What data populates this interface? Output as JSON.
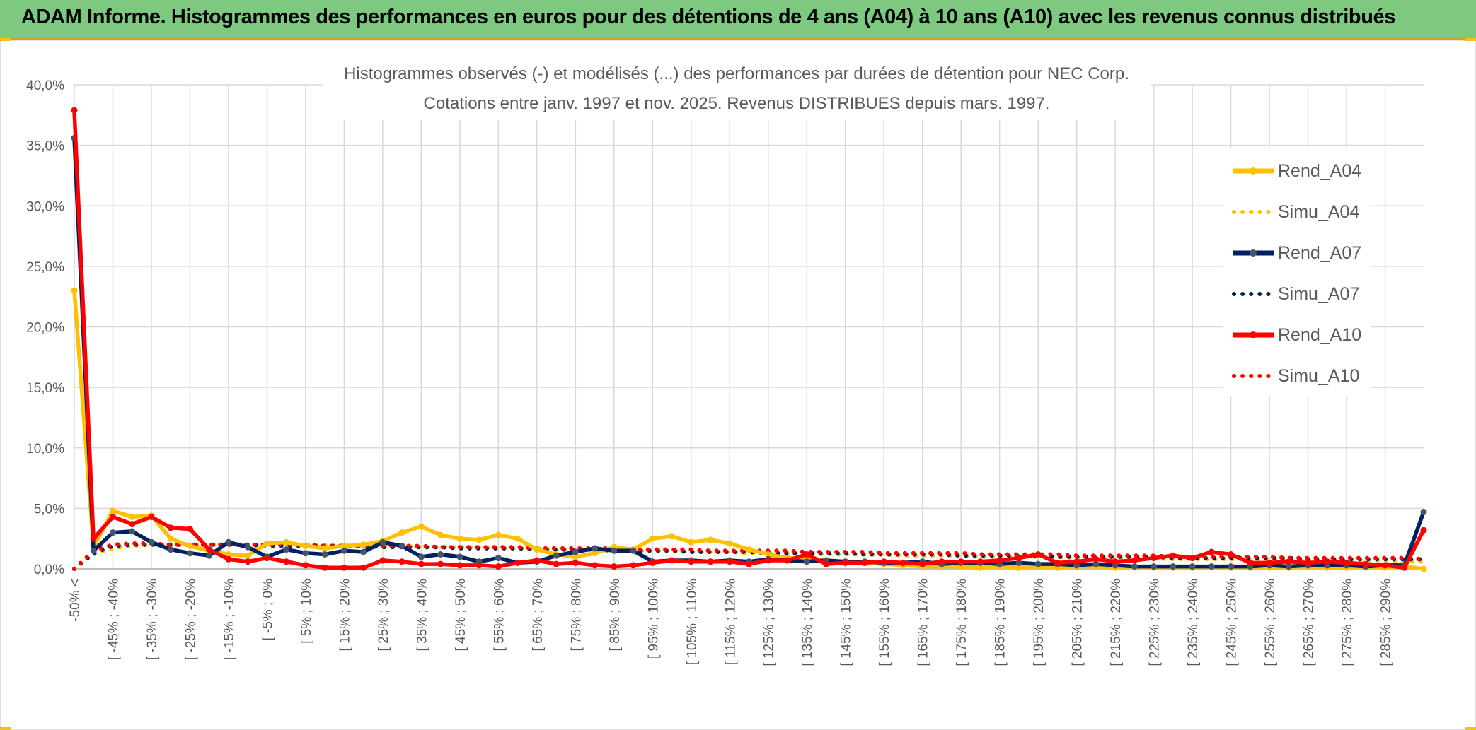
{
  "header": {
    "title": "ADAM Informe. Histogrammes des performances en euros pour des détentions de 4 ans (A04) à 10 ans (A10) avec les revenus connus distribués"
  },
  "colors": {
    "banner": "#7dc97f",
    "A04": "#ffc000",
    "A07": "#002060",
    "A10": "#ff0000",
    "grid": "#d9d9d9",
    "text": "#595959"
  },
  "chart_data": {
    "type": "line",
    "title": "Histogrammes observés (-) et modélisés (...) des performances par durées de détention pour NEC Corp.",
    "subtitle": "Cotations entre janv. 1997 et nov. 2025. Revenus DISTRIBUES depuis mars. 1997.",
    "ylim": [
      0,
      40
    ],
    "yticks": [
      "0,0%",
      "5,0%",
      "10,0%",
      "15,0%",
      "20,0%",
      "25,0%",
      "30,0%",
      "35,0%",
      "40,0%"
    ],
    "grid": true,
    "legend_position": "right",
    "x_tick_labels": [
      "-50% <",
      "[ -45% ; -40%",
      "[ -35% ; -30%",
      "[ -25% ; -20%",
      "[ -15% ; -10%",
      "[ -5% ; 0%",
      "[ 5% ; 10%",
      "[ 15% ; 20%",
      "[ 25% ; 30%",
      "[ 35% ; 40%",
      "[ 45% ; 50%",
      "[ 55% ; 60%",
      "[ 65% ; 70%",
      "[ 75% ; 80%",
      "[ 85% ; 90%",
      "[ 95% ; 100%",
      "[ 105% ; 110%",
      "[ 115% ; 120%",
      "[ 125% ; 130%",
      "[ 135% ; 140%",
      "[ 145% ; 150%",
      "[ 155% ; 160%",
      "[ 165% ; 170%",
      "[ 175% ; 180%",
      "[ 185% ; 190%",
      "[ 195% ; 200%",
      "[ 205% ; 210%",
      "[ 215% ; 220%",
      "[ 225% ; 230%",
      "[ 235% ; 240%",
      "[ 245% ; 250%",
      "[ 255% ; 260%",
      "[ 265% ; 270%",
      "[ 275% ; 280%",
      "[ 285% ; 290%"
    ],
    "n_points": 71,
    "series": [
      {
        "name": "Rend_A04",
        "style": "solid",
        "color": "#ffc000",
        "values": [
          23.0,
          1.8,
          4.8,
          4.3,
          4.4,
          2.5,
          1.9,
          1.5,
          1.2,
          1.1,
          2.1,
          2.2,
          1.9,
          1.7,
          1.9,
          2.0,
          2.3,
          3.0,
          3.5,
          2.8,
          2.5,
          2.4,
          2.8,
          2.5,
          1.6,
          1.2,
          1.0,
          1.3,
          1.8,
          1.6,
          2.5,
          2.7,
          2.2,
          2.4,
          2.1,
          1.6,
          1.2,
          0.9,
          0.8,
          0.7,
          0.6,
          0.5,
          0.4,
          0.3,
          0.2,
          0.2,
          0.2,
          0.1,
          0.2,
          0.1,
          0.2,
          0.1,
          0.2,
          0.2,
          0.1,
          0.2,
          0.1,
          0.1,
          0.1,
          0.2,
          0.1,
          0.1,
          0.1,
          0.1,
          0.2,
          0.1,
          0.1,
          0.2,
          0.1,
          0.2,
          0.0
        ]
      },
      {
        "name": "Simu_A04",
        "style": "dotted",
        "color": "#ffc000",
        "values": [
          0.0,
          1.2,
          1.7,
          1.9,
          2.0,
          2.0,
          2.0,
          2.0,
          2.0,
          2.0,
          2.0,
          2.0,
          2.0,
          2.0,
          1.9,
          1.9,
          1.9,
          1.9,
          1.8,
          1.8,
          1.8,
          1.8,
          1.7,
          1.7,
          1.7,
          1.6,
          1.6,
          1.6,
          1.5,
          1.5,
          1.5,
          1.5,
          1.4,
          1.4,
          1.4,
          1.3,
          1.3,
          1.3,
          1.3,
          1.2,
          1.2,
          1.2,
          1.2,
          1.1,
          1.1,
          1.1,
          1.1,
          1.0,
          1.0,
          1.0,
          1.0,
          1.0,
          0.9,
          0.9,
          0.9,
          0.9,
          0.9,
          0.8,
          0.8,
          0.8,
          0.8,
          0.8,
          0.8,
          0.7,
          0.7,
          0.7,
          0.7,
          0.7,
          0.7,
          0.6,
          0.6
        ]
      },
      {
        "name": "Rend_A07",
        "style": "solid",
        "color": "#002060",
        "values": [
          35.6,
          1.5,
          3.0,
          3.1,
          2.2,
          1.6,
          1.3,
          1.1,
          2.2,
          1.8,
          1.0,
          1.6,
          1.3,
          1.2,
          1.5,
          1.4,
          2.2,
          1.9,
          1.0,
          1.2,
          1.0,
          0.6,
          0.9,
          0.5,
          0.6,
          1.1,
          1.4,
          1.7,
          1.5,
          1.5,
          0.6,
          0.7,
          0.7,
          0.6,
          0.7,
          0.6,
          0.8,
          0.7,
          0.6,
          0.7,
          0.6,
          0.6,
          0.5,
          0.5,
          0.6,
          0.4,
          0.5,
          0.5,
          0.4,
          0.5,
          0.4,
          0.4,
          0.3,
          0.4,
          0.3,
          0.2,
          0.2,
          0.2,
          0.2,
          0.2,
          0.2,
          0.2,
          0.3,
          0.2,
          0.3,
          0.3,
          0.3,
          0.2,
          0.3,
          0.3,
          4.7
        ]
      },
      {
        "name": "Simu_A07",
        "style": "dotted",
        "color": "#002060",
        "values": [
          0.0,
          1.3,
          1.9,
          2.0,
          2.0,
          2.0,
          2.0,
          2.0,
          2.0,
          2.0,
          1.9,
          1.9,
          1.9,
          1.9,
          1.9,
          1.9,
          1.8,
          1.8,
          1.8,
          1.8,
          1.7,
          1.7,
          1.7,
          1.7,
          1.6,
          1.6,
          1.6,
          1.6,
          1.5,
          1.5,
          1.5,
          1.5,
          1.4,
          1.4,
          1.4,
          1.4,
          1.3,
          1.3,
          1.3,
          1.3,
          1.3,
          1.2,
          1.2,
          1.2,
          1.2,
          1.2,
          1.1,
          1.1,
          1.1,
          1.1,
          1.1,
          1.0,
          1.0,
          1.0,
          1.0,
          1.0,
          1.0,
          0.9,
          0.9,
          0.9,
          0.9,
          0.9,
          0.9,
          0.9,
          0.8,
          0.8,
          0.8,
          0.8,
          0.8,
          0.8,
          0.8
        ]
      },
      {
        "name": "Rend_A10",
        "style": "solid",
        "color": "#ff0000",
        "values": [
          37.9,
          2.5,
          4.3,
          3.7,
          4.3,
          3.4,
          3.3,
          1.6,
          0.8,
          0.6,
          0.9,
          0.6,
          0.3,
          0.1,
          0.1,
          0.1,
          0.7,
          0.6,
          0.4,
          0.4,
          0.3,
          0.3,
          0.2,
          0.5,
          0.7,
          0.4,
          0.5,
          0.3,
          0.2,
          0.3,
          0.5,
          0.7,
          0.6,
          0.6,
          0.6,
          0.4,
          0.7,
          0.7,
          1.2,
          0.4,
          0.5,
          0.5,
          0.6,
          0.5,
          0.4,
          0.6,
          0.6,
          0.6,
          0.7,
          0.9,
          1.2,
          0.5,
          0.6,
          0.8,
          0.6,
          0.7,
          0.9,
          1.1,
          0.9,
          1.4,
          1.2,
          0.5,
          0.5,
          0.6,
          0.5,
          0.6,
          0.5,
          0.4,
          0.3,
          0.1,
          3.2
        ]
      },
      {
        "name": "Simu_A10",
        "style": "dotted",
        "color": "#ff0000",
        "values": [
          0.0,
          1.5,
          2.0,
          2.1,
          2.1,
          2.0,
          2.0,
          2.0,
          2.0,
          2.0,
          2.0,
          2.0,
          2.0,
          1.9,
          1.9,
          1.9,
          1.9,
          1.9,
          1.9,
          1.8,
          1.8,
          1.8,
          1.8,
          1.8,
          1.7,
          1.7,
          1.7,
          1.7,
          1.7,
          1.6,
          1.6,
          1.6,
          1.6,
          1.5,
          1.5,
          1.5,
          1.5,
          1.5,
          1.4,
          1.4,
          1.4,
          1.4,
          1.3,
          1.3,
          1.3,
          1.3,
          1.3,
          1.2,
          1.2,
          1.2,
          1.2,
          1.2,
          1.1,
          1.1,
          1.1,
          1.1,
          1.1,
          1.0,
          1.0,
          1.0,
          1.0,
          1.0,
          1.0,
          0.9,
          0.9,
          0.9,
          0.9,
          0.9,
          0.9,
          0.9,
          0.8
        ]
      }
    ]
  }
}
